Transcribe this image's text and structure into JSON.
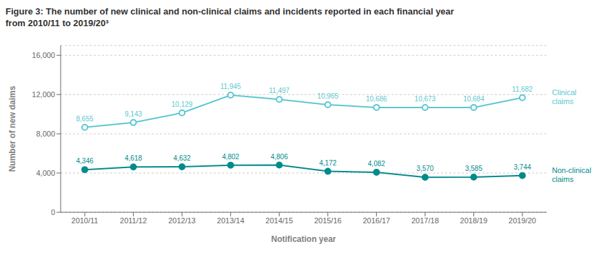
{
  "chart_data": {
    "type": "line",
    "title": "Figure 3: The number of new clinical and non-clinical claims and incidents reported in each financial year\nfrom 2010/11 to 2019/20³",
    "x_label": "Notification year",
    "y_label": "Number of new daims",
    "categories": [
      "2010/11",
      "2011/12",
      "2012/13",
      "2013/14",
      "2014/15",
      "2015/16",
      "2016/17",
      "2017/18",
      "2018/19",
      "2019/20"
    ],
    "series": [
      {
        "name": "Clinical\nclaims",
        "color": "#5BC8D0",
        "marker": "open_circle",
        "values": [
          8655,
          9143,
          10129,
          11945,
          11497,
          10965,
          10686,
          10673,
          10684,
          11682
        ],
        "value_labels": [
          "8,655",
          "9,143",
          "10,129",
          "11,945",
          "11,497",
          "10,965",
          "10,686",
          "10,673",
          "10,684",
          "11,682"
        ]
      },
      {
        "name": "Non-clinical\nclaims",
        "color": "#008B8B",
        "marker": "circle",
        "values": [
          4346,
          4618,
          4632,
          4802,
          4806,
          4172,
          4082,
          3570,
          3585,
          3744
        ],
        "value_labels": [
          "4,346",
          "4,618",
          "4,632",
          "4,802",
          "4,806",
          "4,172",
          "4,082",
          "3,570",
          "3,585",
          "3,744"
        ]
      }
    ],
    "ylim": [
      0,
      17000
    ],
    "yticks": [
      0,
      {
        "value": 4000,
        "label": "4,000"
      },
      {
        "value": 8000,
        "label": "8,000"
      },
      {
        "value": 12000,
        "label": "12,000"
      },
      {
        "value": 16000,
        "label": "16,000"
      }
    ],
    "grid": true,
    "data_labels": true
  }
}
